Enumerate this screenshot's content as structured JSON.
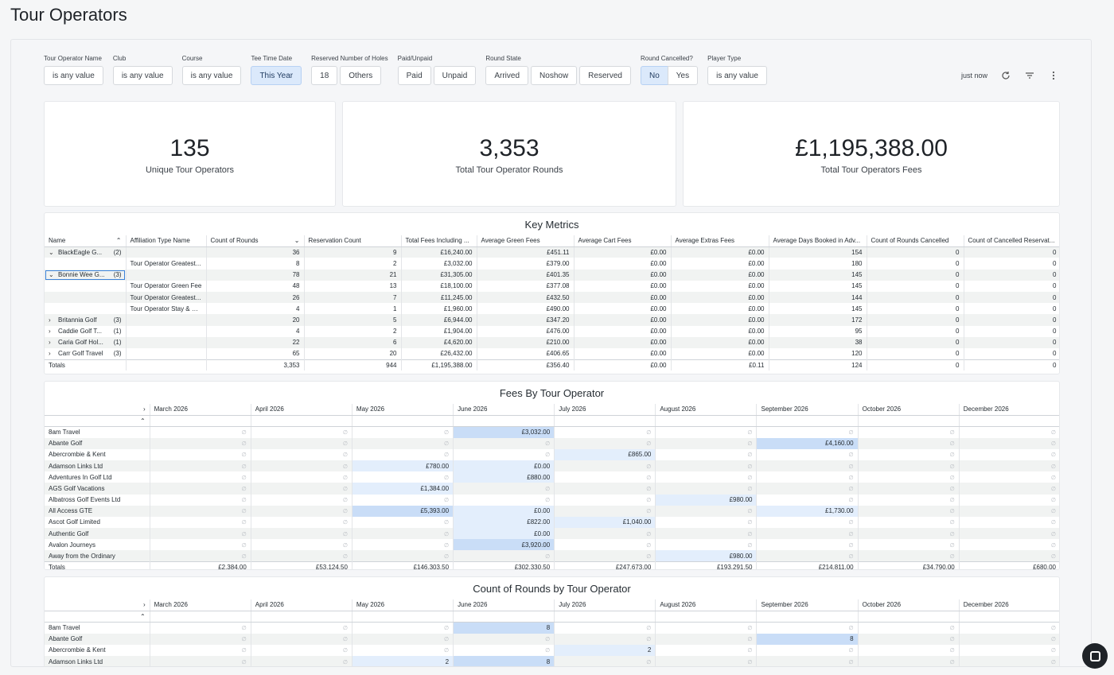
{
  "page": {
    "title": "Tour Operators"
  },
  "filters": [
    {
      "label": "Tour Operator Name",
      "options": [
        "is any value"
      ],
      "active": []
    },
    {
      "label": "Club",
      "options": [
        "is any value"
      ],
      "active": []
    },
    {
      "label": "Course",
      "options": [
        "is any value"
      ],
      "active": []
    },
    {
      "label": "Tee Time Date",
      "options": [
        "This Year"
      ],
      "active": [
        0
      ]
    },
    {
      "label": "Reserved Number of Holes",
      "options": [
        "18",
        "Others"
      ],
      "active": []
    },
    {
      "label": "Paid/Unpaid",
      "options": [
        "Paid",
        "Unpaid"
      ],
      "active": []
    },
    {
      "label": "Round State",
      "options": [
        "Arrived",
        "Noshow",
        "Reserved"
      ],
      "active": []
    },
    {
      "label": "Round Cancelled?",
      "options": [
        "No",
        "Yes"
      ],
      "active": [
        0
      ],
      "segmented": true
    },
    {
      "label": "Player Type",
      "options": [
        "is any value"
      ],
      "active": []
    }
  ],
  "toolbar": {
    "updated": "just now",
    "refresh_icon": "refresh-icon",
    "filter_icon": "filter-icon",
    "more_icon": "more-vert-icon"
  },
  "tiles": [
    {
      "value": "135",
      "label": "Unique Tour Operators"
    },
    {
      "value": "3,353",
      "label": "Total Tour Operator Rounds"
    },
    {
      "value": "£1,195,388.00",
      "label": "Total Tour Operators Fees"
    }
  ],
  "key_metrics": {
    "title": "Key Metrics",
    "columns": [
      "Name",
      "Affiliation Type Name",
      "Count of Rounds",
      "Reservation Count",
      "Total Fees Including ...",
      "Average Green Fees",
      "Average Cart Fees",
      "Average Extras Fees",
      "Average Days Booked in Adv...",
      "Count of Rounds Cancelled",
      "Count of Cancelled Reservat..."
    ],
    "rows": [
      {
        "caret": "⌄",
        "name": "BlackEagle G...",
        "count": "(2)",
        "cells": [
          "",
          "36",
          "9",
          "£16,240.00",
          "£451.11",
          "£0.00",
          "£0.00",
          "154",
          "0",
          "0"
        ]
      },
      {
        "caret": "",
        "name": "",
        "count": "",
        "cells": [
          "Tour Operator Greatest...",
          "8",
          "2",
          "£3,032.00",
          "£379.00",
          "£0.00",
          "£0.00",
          "180",
          "0",
          "0"
        ]
      },
      {
        "caret": "⌄",
        "name": "Bonnie Wee G...",
        "count": "(3)",
        "selected": true,
        "cells": [
          "",
          "78",
          "21",
          "£31,305.00",
          "£401.35",
          "£0.00",
          "£0.00",
          "145",
          "0",
          "0"
        ]
      },
      {
        "caret": "",
        "name": "",
        "count": "",
        "cells": [
          "Tour Operator Green Fee",
          "48",
          "13",
          "£18,100.00",
          "£377.08",
          "£0.00",
          "£0.00",
          "145",
          "0",
          "0"
        ]
      },
      {
        "caret": "",
        "name": "",
        "count": "",
        "cells": [
          "Tour Operator Greatest...",
          "26",
          "7",
          "£11,245.00",
          "£432.50",
          "£0.00",
          "£0.00",
          "144",
          "0",
          "0"
        ]
      },
      {
        "caret": "",
        "name": "",
        "count": "",
        "cells": [
          "Tour Operator Stay & Pl...",
          "4",
          "1",
          "£1,960.00",
          "£490.00",
          "£0.00",
          "£0.00",
          "145",
          "0",
          "0"
        ]
      },
      {
        "caret": "›",
        "name": "Britannia Golf",
        "count": "(3)",
        "cells": [
          "",
          "20",
          "5",
          "£6,944.00",
          "£347.20",
          "£0.00",
          "£0.00",
          "172",
          "0",
          "0"
        ]
      },
      {
        "caret": "›",
        "name": "Caddie Golf T...",
        "count": "(1)",
        "cells": [
          "",
          "4",
          "2",
          "£1,904.00",
          "£476.00",
          "£0.00",
          "£0.00",
          "95",
          "0",
          "0"
        ]
      },
      {
        "caret": "›",
        "name": "Caria Golf Hol...",
        "count": "(1)",
        "cells": [
          "",
          "22",
          "6",
          "£4,620.00",
          "£210.00",
          "£0.00",
          "£0.00",
          "38",
          "0",
          "0"
        ]
      },
      {
        "caret": "›",
        "name": "Carr Golf Travel",
        "count": "(3)",
        "cells": [
          "",
          "65",
          "20",
          "£26,432.00",
          "£406.65",
          "£0.00",
          "£0.00",
          "120",
          "0",
          "0"
        ]
      }
    ],
    "totals": {
      "label": "Totals",
      "cells": [
        "",
        "3,353",
        "944",
        "£1,195,388.00",
        "£356.40",
        "£0.00",
        "£0.11",
        "124",
        "0",
        "0"
      ]
    }
  },
  "fees": {
    "title": "Fees By Tour Operator",
    "months": [
      "March 2026",
      "April 2026",
      "May 2026",
      "June 2026",
      "July 2026",
      "August 2026",
      "September 2026",
      "October 2026",
      "December 2026"
    ],
    "null_symbol": "∅",
    "rows": [
      {
        "name": "8am Travel",
        "cells": [
          "",
          "",
          "",
          "£3,032.00",
          "",
          "",
          "",
          "",
          ""
        ],
        "hl": [
          0,
          0,
          0,
          2,
          0,
          0,
          0,
          0,
          0
        ]
      },
      {
        "name": "Abante Golf",
        "cells": [
          "",
          "",
          "",
          "",
          "",
          "",
          "£4,160.00",
          "",
          ""
        ],
        "hl": [
          0,
          0,
          0,
          0,
          0,
          0,
          2,
          0,
          0
        ]
      },
      {
        "name": "Abercrombie & Kent",
        "cells": [
          "",
          "",
          "",
          "",
          "£865.00",
          "",
          "",
          "",
          ""
        ],
        "hl": [
          0,
          0,
          0,
          0,
          1,
          0,
          0,
          0,
          0
        ]
      },
      {
        "name": "Adamson Links Ltd",
        "cells": [
          "",
          "",
          "£780.00",
          "£0.00",
          "",
          "",
          "",
          "",
          ""
        ],
        "hl": [
          0,
          0,
          1,
          1,
          0,
          0,
          0,
          0,
          0
        ]
      },
      {
        "name": "Adventures In Golf Ltd",
        "cells": [
          "",
          "",
          "",
          "£880.00",
          "",
          "",
          "",
          "",
          ""
        ],
        "hl": [
          0,
          0,
          0,
          1,
          0,
          0,
          0,
          0,
          0
        ]
      },
      {
        "name": "AGS Golf Vacations",
        "cells": [
          "",
          "",
          "£1,384.00",
          "",
          "",
          "",
          "",
          "",
          ""
        ],
        "hl": [
          0,
          0,
          1,
          0,
          0,
          0,
          0,
          0,
          0
        ]
      },
      {
        "name": "Albatross Golf Events Ltd",
        "cells": [
          "",
          "",
          "",
          "",
          "",
          "£980.00",
          "",
          "",
          ""
        ],
        "hl": [
          0,
          0,
          0,
          0,
          0,
          1,
          0,
          0,
          0
        ]
      },
      {
        "name": "All Access GTE",
        "cells": [
          "",
          "",
          "£5,393.00",
          "£0.00",
          "",
          "",
          "£1,730.00",
          "",
          ""
        ],
        "hl": [
          0,
          0,
          2,
          1,
          0,
          0,
          1,
          0,
          0
        ]
      },
      {
        "name": "Ascot Golf Limited",
        "cells": [
          "",
          "",
          "",
          "£822.00",
          "£1,040.00",
          "",
          "",
          "",
          ""
        ],
        "hl": [
          0,
          0,
          0,
          1,
          1,
          0,
          0,
          0,
          0
        ]
      },
      {
        "name": "Authentic Golf",
        "cells": [
          "",
          "",
          "",
          "£0.00",
          "",
          "",
          "",
          "",
          ""
        ],
        "hl": [
          0,
          0,
          0,
          1,
          0,
          0,
          0,
          0,
          0
        ]
      },
      {
        "name": "Avalon Journeys",
        "cells": [
          "",
          "",
          "",
          "£3,920.00",
          "",
          "",
          "",
          "",
          ""
        ],
        "hl": [
          0,
          0,
          0,
          2,
          0,
          0,
          0,
          0,
          0
        ]
      },
      {
        "name": "Away from the Ordinary",
        "cells": [
          "",
          "",
          "",
          "",
          "",
          "£980.00",
          "",
          "",
          ""
        ],
        "hl": [
          0,
          0,
          0,
          0,
          0,
          1,
          0,
          0,
          0
        ]
      }
    ],
    "totals": {
      "label": "Totals",
      "cells": [
        "£2,384.00",
        "£53,124.50",
        "£146,303.50",
        "£302,330.50",
        "£247,673.00",
        "£193,291.50",
        "£214,811.00",
        "£34,790.00",
        "£680.00"
      ]
    }
  },
  "rounds": {
    "title": "Count of Rounds by Tour Operator",
    "months": [
      "March 2026",
      "April 2026",
      "May 2026",
      "June 2026",
      "July 2026",
      "August 2026",
      "September 2026",
      "October 2026",
      "December 2026"
    ],
    "rows": [
      {
        "name": "8am Travel",
        "cells": [
          "",
          "",
          "",
          "8",
          "",
          "",
          "",
          "",
          ""
        ],
        "hl": [
          0,
          0,
          0,
          2,
          0,
          0,
          0,
          0,
          0
        ]
      },
      {
        "name": "Abante Golf",
        "cells": [
          "",
          "",
          "",
          "",
          "",
          "",
          "8",
          "",
          ""
        ],
        "hl": [
          0,
          0,
          0,
          0,
          0,
          0,
          2,
          0,
          0
        ]
      },
      {
        "name": "Abercrombie & Kent",
        "cells": [
          "",
          "",
          "",
          "",
          "2",
          "",
          "",
          "",
          ""
        ],
        "hl": [
          0,
          0,
          0,
          0,
          1,
          0,
          0,
          0,
          0
        ]
      },
      {
        "name": "Adamson Links Ltd",
        "cells": [
          "",
          "",
          "2",
          "8",
          "",
          "",
          "",
          "",
          ""
        ],
        "hl": [
          0,
          0,
          1,
          2,
          0,
          0,
          0,
          0,
          0
        ]
      }
    ]
  }
}
